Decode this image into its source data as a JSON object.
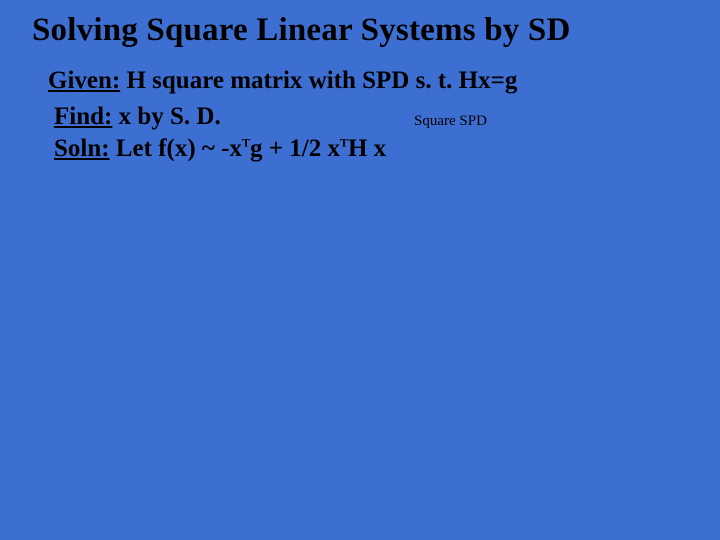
{
  "colors": {
    "background": "#3d6fd3",
    "text": "#000000"
  },
  "title": "Solving Square Linear Systems by SD",
  "given": {
    "label": "Given:",
    "text": " H square matrix with SPD s. t. Hx=g"
  },
  "find": {
    "label": "Find:",
    "text": "   x by S. D."
  },
  "note": "Square SPD",
  "soln": {
    "label": "Soln:",
    "prefix": "   Let f(x) ~ -x",
    "sup1": "T",
    "mid": "g  + 1/2 x",
    "sup2": "T",
    "suffix": "H x"
  }
}
